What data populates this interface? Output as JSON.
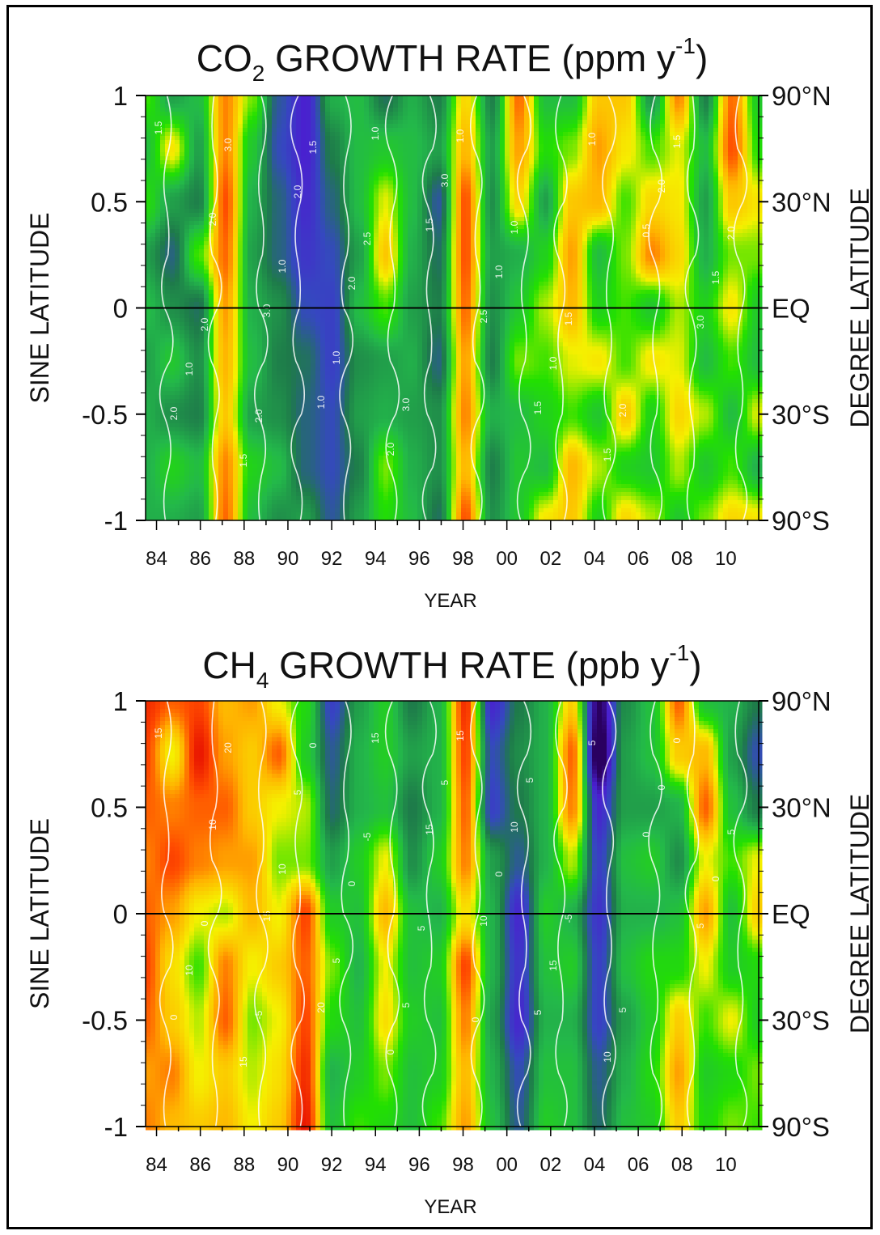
{
  "chart_data": [
    {
      "type": "heatmap",
      "title_main": "CO",
      "title_sub": "2",
      "title_rest": " GROWTH RATE (ppm y",
      "title_sup": "-1",
      "title_close": ")",
      "xlabel": "YEAR",
      "ylabel": "SINE LATITUDE",
      "ylabel_right": "DEGREE LATITUDE",
      "xlim": [
        1983.5,
        2011.5
      ],
      "ylim": [
        -1,
        1
      ],
      "x_ticks": [
        1984,
        1986,
        1988,
        1990,
        1992,
        1994,
        1996,
        1998,
        2000,
        2002,
        2004,
        2006,
        2008,
        2010
      ],
      "x_tick_labels": [
        "84",
        "86",
        "88",
        "90",
        "92",
        "94",
        "96",
        "98",
        "00",
        "02",
        "04",
        "06",
        "08",
        "10"
      ],
      "y_ticks": [
        1,
        0.5,
        0,
        -0.5,
        -1
      ],
      "y_tick_labels": [
        "1",
        "0.5",
        "0",
        "-0.5",
        "-1"
      ],
      "right_tick_labels": [
        "90°N",
        "30°N",
        "EQ",
        "30°S",
        "90°S"
      ],
      "zero_line": 0,
      "colorscale": [
        "#2a0060",
        "#4a1fd0",
        "#3548c0",
        "#1e7a4a",
        "#23b84a",
        "#22e000",
        "#f5f000",
        "#ffb400",
        "#ff4a00",
        "#e00000"
      ],
      "value_range": [
        0,
        3.5
      ],
      "z_values": [
        [
          2.0,
          1.4,
          1.6,
          2.9,
          2.1,
          0.9,
          0.4,
          1.5,
          1.6,
          1.1,
          1.5,
          1.2,
          2.5,
          1.2,
          3.0,
          1.6,
          1.6,
          2.6,
          2.6,
          1.3,
          2.9,
          1.2,
          3.0,
          1.7
        ],
        [
          1.6,
          2.4,
          1.4,
          2.9,
          1.7,
          0.8,
          0.4,
          1.2,
          1.6,
          1.7,
          1.6,
          1.4,
          2.7,
          1.4,
          2.8,
          1.9,
          2.1,
          2.8,
          2.4,
          2.0,
          2.3,
          1.6,
          3.1,
          1.9
        ],
        [
          1.9,
          1.4,
          1.2,
          3.1,
          1.5,
          1.0,
          0.5,
          1.0,
          1.6,
          2.3,
          1.6,
          0.9,
          3.1,
          1.3,
          2.5,
          1.4,
          2.6,
          2.7,
          2.0,
          2.5,
          2.4,
          1.4,
          2.6,
          2.4
        ],
        [
          1.4,
          1.0,
          2.0,
          3.0,
          1.4,
          1.0,
          0.6,
          0.8,
          1.4,
          2.6,
          1.5,
          1.1,
          3.1,
          1.4,
          1.5,
          1.8,
          2.8,
          1.6,
          2.1,
          2.9,
          2.5,
          1.5,
          2.1,
          2.1
        ],
        [
          1.6,
          1.3,
          1.1,
          2.8,
          1.5,
          1.3,
          0.8,
          0.7,
          1.6,
          2.0,
          1.4,
          1.2,
          3.0,
          1.3,
          1.7,
          2.2,
          2.7,
          1.8,
          2.0,
          1.7,
          2.2,
          1.8,
          2.4,
          1.7
        ],
        [
          1.4,
          1.7,
          1.3,
          2.7,
          1.6,
          1.2,
          1.1,
          0.7,
          1.3,
          1.4,
          1.5,
          1.0,
          2.8,
          1.2,
          2.1,
          2.0,
          2.3,
          2.4,
          2.0,
          2.4,
          2.3,
          1.6,
          2.0,
          1.6
        ],
        [
          1.5,
          1.3,
          1.2,
          2.6,
          1.4,
          1.3,
          1.0,
          0.8,
          1.4,
          1.5,
          1.4,
          1.3,
          2.9,
          1.5,
          1.6,
          1.8,
          2.0,
          1.7,
          2.6,
          1.8,
          2.5,
          2.2,
          1.6,
          2.3
        ],
        [
          1.5,
          1.8,
          1.6,
          2.9,
          1.8,
          1.6,
          1.0,
          0.8,
          1.2,
          2.1,
          1.5,
          1.3,
          2.7,
          1.2,
          1.7,
          1.6,
          2.7,
          2.2,
          1.8,
          1.7,
          2.2,
          1.7,
          2.0,
          1.5
        ],
        [
          1.5,
          1.5,
          1.4,
          3.0,
          1.6,
          1.3,
          1.4,
          0.9,
          1.4,
          1.9,
          1.6,
          1.1,
          3.1,
          1.3,
          1.7,
          2.4,
          2.6,
          1.8,
          2.5,
          2.2,
          1.7,
          2.1,
          2.5,
          2.4
        ]
      ],
      "contour_labels": [
        "1.5",
        "2.0",
        "3.0",
        "1.0",
        "1.0",
        "1.5",
        "2.5",
        "1.5",
        "1.0",
        "0.5",
        "3.0",
        "2.0",
        "3.0",
        "1.0",
        "1.0",
        "2.0",
        "3.0",
        "1.0",
        "1.0",
        "1.5",
        "2.0",
        "1.5",
        "1.0",
        "1.5",
        "2.0",
        "2.0",
        "3.0",
        "1.0",
        "1.0",
        "1.5",
        "2.0",
        "1.5",
        "2.0",
        "2.0",
        "2.0",
        "1.5",
        "2.5"
      ]
    },
    {
      "type": "heatmap",
      "title_main": "CH",
      "title_sub": "4",
      "title_rest": " GROWTH RATE (ppb y",
      "title_sup": "-1",
      "title_close": ")",
      "xlabel": "YEAR",
      "ylabel": "SINE LATITUDE",
      "ylabel_right": "DEGREE LATITUDE",
      "xlim": [
        1983.5,
        2011.5
      ],
      "ylim": [
        -1,
        1
      ],
      "x_ticks": [
        1984,
        1986,
        1988,
        1990,
        1992,
        1994,
        1996,
        1998,
        2000,
        2002,
        2004,
        2006,
        2008,
        2010
      ],
      "x_tick_labels": [
        "84",
        "86",
        "88",
        "90",
        "92",
        "94",
        "96",
        "98",
        "00",
        "02",
        "04",
        "06",
        "08",
        "10"
      ],
      "y_ticks": [
        1,
        0.5,
        0,
        -0.5,
        -1
      ],
      "y_tick_labels": [
        "1",
        "0.5",
        "0",
        "-0.5",
        "-1"
      ],
      "right_tick_labels": [
        "90°N",
        "30°N",
        "EQ",
        "30°S",
        "90°S"
      ],
      "zero_line": 0,
      "colorscale": [
        "#2a0060",
        "#4a1fd0",
        "#3548c0",
        "#1e7a4a",
        "#23b84a",
        "#22e000",
        "#f5f000",
        "#ffb400",
        "#ff4a00",
        "#e00000"
      ],
      "value_range": [
        -10,
        20
      ],
      "z_values": [
        [
          18,
          16,
          17,
          13,
          14,
          10,
          6,
          -4,
          2,
          5,
          0,
          3,
          18,
          -6,
          0,
          3,
          12,
          -10,
          1,
          4,
          16,
          4,
          3,
          0
        ],
        [
          17,
          10,
          19,
          14,
          12,
          16,
          5,
          -2,
          3,
          5,
          2,
          3,
          17,
          -3,
          1,
          3,
          16,
          -12,
          2,
          4,
          12,
          13,
          2,
          -3
        ],
        [
          16,
          15,
          16,
          16,
          12,
          10,
          9,
          -1,
          3,
          4,
          0,
          3,
          16,
          -4,
          0,
          3,
          15,
          -6,
          2,
          2,
          3,
          16,
          4,
          0
        ],
        [
          15,
          17,
          15,
          14,
          14,
          8,
          8,
          2,
          5,
          10,
          1,
          5,
          15,
          2,
          -2,
          3,
          9,
          -4,
          4,
          5,
          1,
          10,
          7,
          10
        ],
        [
          16,
          14,
          10,
          9,
          13,
          10,
          17,
          5,
          4,
          13,
          4,
          3,
          11,
          3,
          -6,
          5,
          3,
          -5,
          3,
          3,
          4,
          14,
          4,
          12
        ],
        [
          17,
          11,
          7,
          15,
          10,
          12,
          16,
          8,
          3,
          10,
          4,
          5,
          17,
          3,
          -5,
          4,
          5,
          -4,
          4,
          6,
          6,
          10,
          5,
          6
        ],
        [
          16,
          12,
          9,
          16,
          8,
          10,
          17,
          6,
          4,
          11,
          5,
          4,
          15,
          2,
          -6,
          3,
          3,
          -4,
          2,
          5,
          12,
          7,
          10,
          5
        ],
        [
          14,
          15,
          10,
          12,
          9,
          11,
          18,
          3,
          5,
          8,
          4,
          5,
          13,
          3,
          -3,
          4,
          4,
          -2,
          3,
          6,
          14,
          5,
          6,
          8
        ],
        [
          15,
          13,
          12,
          13,
          10,
          12,
          19,
          4,
          7,
          6,
          4,
          7,
          14,
          4,
          -2,
          5,
          4,
          -1,
          4,
          5,
          12,
          6,
          8,
          7
        ]
      ],
      "contour_labels": [
        "15",
        "10",
        "15",
        "20",
        "15",
        "15",
        "10",
        "5",
        "5",
        "0",
        "5",
        "0",
        "20",
        "10",
        "5",
        "0",
        "5",
        "0",
        "15",
        "10",
        "0",
        "0",
        "10",
        "15",
        "5",
        "0",
        "5",
        "15",
        "10",
        "-5",
        "5",
        "0",
        "5",
        "0",
        "-5",
        "0",
        "-5",
        "5",
        "0",
        "5"
      ]
    }
  ]
}
